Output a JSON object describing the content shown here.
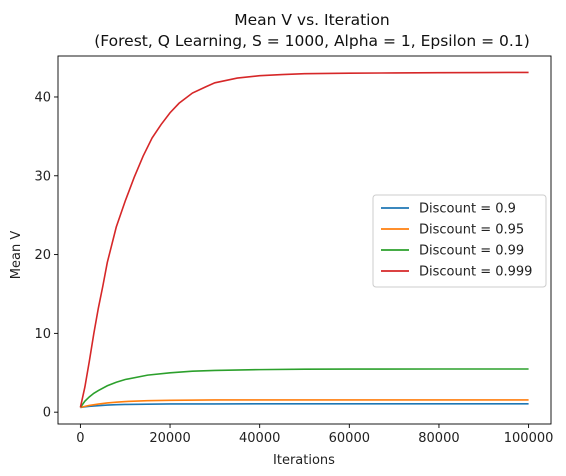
{
  "chart_data": {
    "type": "line",
    "title": "Mean V vs. Iteration",
    "subtitle": "(Forest, Q Learning, S = 1000, Alpha = 1, Epsilon = 0.1)",
    "xlabel": "Iterations",
    "ylabel": "Mean V",
    "xlim": [
      -5000,
      105000
    ],
    "ylim": [
      -1.5,
      45.2
    ],
    "xticks": [
      0,
      20000,
      40000,
      60000,
      80000,
      100000
    ],
    "yticks": [
      0,
      10,
      20,
      30,
      40
    ],
    "grid": false,
    "legend_position": "center-right",
    "series": [
      {
        "name": "Discount = 0.9",
        "color": "#1f77b4",
        "x": [
          0,
          1000,
          2000,
          4000,
          6000,
          8000,
          10000,
          15000,
          20000,
          30000,
          40000,
          60000,
          80000,
          100000
        ],
        "y": [
          0.6,
          0.68,
          0.74,
          0.83,
          0.9,
          0.95,
          0.98,
          1.02,
          1.04,
          1.05,
          1.06,
          1.06,
          1.06,
          1.06
        ]
      },
      {
        "name": "Discount = 0.95",
        "color": "#ff7f0e",
        "x": [
          0,
          1000,
          2000,
          4000,
          6000,
          8000,
          10000,
          15000,
          20000,
          30000,
          40000,
          60000,
          80000,
          100000
        ],
        "y": [
          0.6,
          0.74,
          0.86,
          1.03,
          1.17,
          1.27,
          1.35,
          1.46,
          1.51,
          1.55,
          1.56,
          1.56,
          1.56,
          1.56
        ]
      },
      {
        "name": "Discount = 0.99",
        "color": "#2ca02c",
        "x": [
          0,
          1000,
          2000,
          3000,
          4000,
          6000,
          8000,
          10000,
          15000,
          20000,
          25000,
          30000,
          40000,
          50000,
          60000,
          80000,
          100000
        ],
        "y": [
          0.6,
          1.4,
          1.95,
          2.4,
          2.75,
          3.35,
          3.8,
          4.15,
          4.7,
          5.0,
          5.2,
          5.3,
          5.4,
          5.45,
          5.47,
          5.48,
          5.48
        ]
      },
      {
        "name": "Discount = 0.999",
        "color": "#d62728",
        "x": [
          0,
          1000,
          2000,
          3000,
          4000,
          5000,
          6000,
          8000,
          10000,
          12000,
          14000,
          16000,
          18000,
          20000,
          22000,
          25000,
          28000,
          30000,
          35000,
          40000,
          45000,
          50000,
          60000,
          70000,
          80000,
          90000,
          100000
        ],
        "y": [
          0.6,
          3.2,
          6.5,
          10.0,
          13.2,
          16.0,
          19.0,
          23.5,
          26.8,
          29.8,
          32.5,
          34.8,
          36.5,
          38.0,
          39.2,
          40.5,
          41.3,
          41.8,
          42.4,
          42.7,
          42.85,
          42.95,
          43.02,
          43.05,
          43.08,
          43.1,
          43.12
        ]
      }
    ]
  }
}
